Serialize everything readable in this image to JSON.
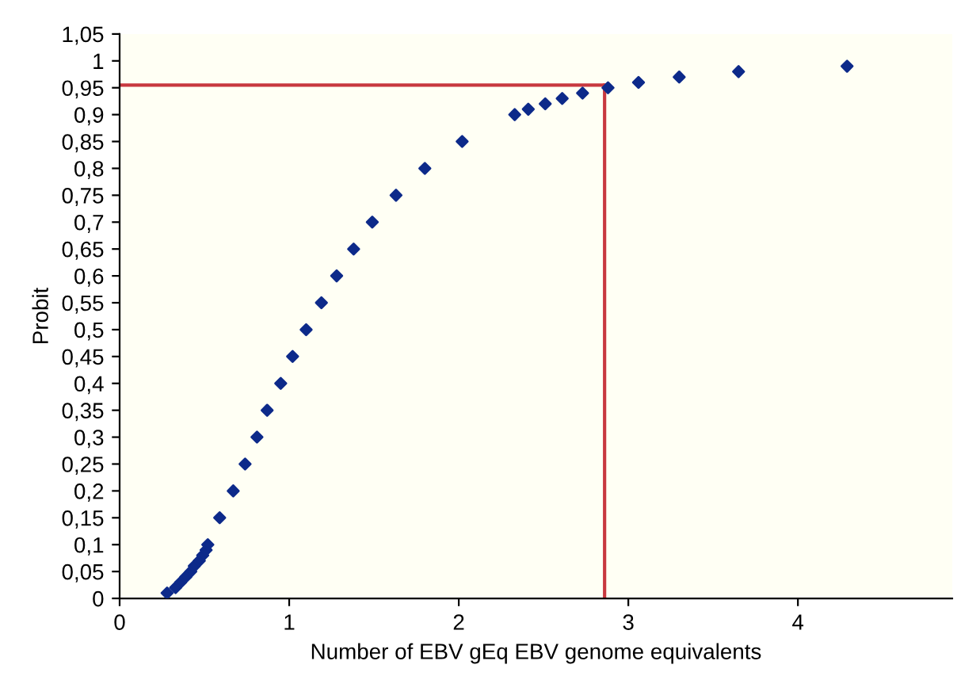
{
  "chart_data": {
    "type": "scatter",
    "xlabel": "Number of EBV gEq EBV genome equivalents",
    "ylabel": "Probit",
    "x": [
      0.28,
      0.33,
      0.36,
      0.39,
      0.42,
      0.44,
      0.47,
      0.49,
      0.51,
      0.52,
      0.59,
      0.67,
      0.74,
      0.81,
      0.87,
      0.95,
      1.02,
      1.1,
      1.19,
      1.28,
      1.38,
      1.49,
      1.63,
      1.8,
      2.02,
      2.33,
      2.41,
      2.51,
      2.61,
      2.73,
      2.88,
      3.06,
      3.3,
      3.65,
      4.29
    ],
    "series": [
      {
        "color": "#0d2a8a",
        "values": [
          0.01,
          0.02,
          0.03,
          0.04,
          0.05,
          0.06,
          0.07,
          0.08,
          0.09,
          0.1,
          0.15,
          0.2,
          0.25,
          0.3,
          0.35,
          0.4,
          0.45,
          0.5,
          0.55,
          0.6,
          0.65,
          0.7,
          0.75,
          0.8,
          0.85,
          0.9,
          0.91,
          0.92,
          0.93,
          0.94,
          0.95,
          0.96,
          0.97,
          0.98,
          0.99
        ]
      }
    ],
    "marker": "diamond",
    "grid": false,
    "legend": false,
    "xlim": [
      0,
      4.91
    ],
    "xticks": [
      0,
      1,
      2,
      3,
      4
    ],
    "ylim": [
      0,
      1.05
    ],
    "yticks": [
      0,
      {
        "value": 0.05,
        "label": "0,05"
      },
      {
        "value": 0.1,
        "label": "0,1"
      },
      {
        "value": 0.15,
        "label": "0,15"
      },
      {
        "value": 0.2,
        "label": "0,2"
      },
      {
        "value": 0.25,
        "label": "0,25"
      },
      {
        "value": 0.3,
        "label": "0,3"
      },
      {
        "value": 0.35,
        "label": "0,35"
      },
      {
        "value": 0.4,
        "label": "0,4"
      },
      {
        "value": 0.45,
        "label": "0,45"
      },
      {
        "value": 0.5,
        "label": "0,5"
      },
      {
        "value": 0.55,
        "label": "0,55"
      },
      {
        "value": 0.6,
        "label": "0,6"
      },
      {
        "value": 0.65,
        "label": "0,65"
      },
      {
        "value": 0.7,
        "label": "0,7"
      },
      {
        "value": 0.75,
        "label": "0,75"
      },
      {
        "value": 0.8,
        "label": "0,8"
      },
      {
        "value": 0.85,
        "label": "0,85"
      },
      {
        "value": 0.9,
        "label": "0,9"
      },
      {
        "value": 0.95,
        "label": "0,95"
      },
      1,
      {
        "value": 1.05,
        "label": "1,05"
      }
    ],
    "ref_lines": [
      {
        "axis": "y",
        "value": 0.955,
        "color": "#c8383f"
      },
      {
        "axis": "x",
        "value": 2.86,
        "color": "#c8383f"
      }
    ]
  }
}
